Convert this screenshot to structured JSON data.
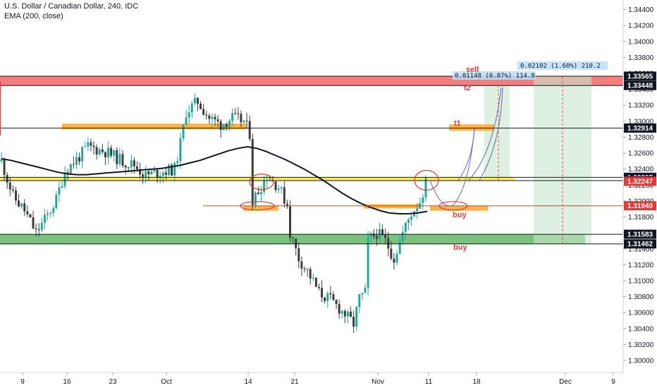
{
  "header": {
    "title": "U.S. Dollar / Canadian Dollar, 240, IDC",
    "indicator": "EMA (200, close)"
  },
  "colors": {
    "up": "#26a69a",
    "down": "#3d3d3d",
    "ema": "#131722",
    "resistance_zone": "#ef5350",
    "support_zone": "#4caf50",
    "orange_zone": "#ffa726",
    "yellow_line": "#ffeb3b",
    "red_line": "#e53935",
    "arrow": "#5c6bc0",
    "price_label_red": "#e53935",
    "price_label_black": "#131722"
  },
  "chart_data": {
    "type": "candlestick",
    "x_tick_labels": [
      "9",
      "16",
      "23",
      "Oct",
      "14",
      "21",
      "Nov",
      "11",
      "18",
      "Dec",
      "9"
    ],
    "y_tick_labels": [
      "1.34400",
      "1.34200",
      "1.34000",
      "1.33800",
      "1.33600",
      "1.33400",
      "1.33200",
      "1.33000",
      "1.32800",
      "1.32600",
      "1.32400",
      "1.32200",
      "1.32000",
      "1.31800",
      "1.31600",
      "1.31400",
      "1.31200",
      "1.31000",
      "1.30800",
      "1.30600",
      "1.30400",
      "1.30200",
      "1.30000"
    ],
    "ylim": [
      1.2985,
      1.3452
    ],
    "price_levels": [
      {
        "label": "1.33565",
        "value": 1.33565,
        "style": "black"
      },
      {
        "label": "1.33448",
        "value": 1.33448,
        "style": "black"
      },
      {
        "label": "1.32914",
        "value": 1.32914,
        "style": "black"
      },
      {
        "label": "1.32297",
        "value": 1.32297,
        "style": "black"
      },
      {
        "label": "1.32256",
        "value": 1.32256,
        "style": "black"
      },
      {
        "label": "1.32247",
        "value": 1.32247,
        "style": "red"
      },
      {
        "label": "1.31940",
        "value": 1.3194,
        "style": "red"
      },
      {
        "label": "1.31583",
        "value": 1.31583,
        "style": "black"
      },
      {
        "label": "1.31462",
        "value": 1.31462,
        "style": "black"
      }
    ],
    "annotations": {
      "sell": "sell",
      "t1": "t1",
      "t2": "t2",
      "buy1": "buy",
      "buy2": "buy",
      "measure1": "0.01148 (0.87%) 114.8",
      "measure2": "0.02102 (1.60%) 210.2"
    },
    "ema_line": [
      1.3253,
      1.3251,
      1.3248,
      1.3245,
      1.3242,
      1.3239,
      1.3236,
      1.3234,
      1.3233,
      1.3233,
      1.3234,
      1.3235,
      1.3236,
      1.3237,
      1.3238,
      1.3239,
      1.324,
      1.3241,
      1.3243,
      1.3245,
      1.3248,
      1.3251,
      1.3255,
      1.3259,
      1.3263,
      1.3266,
      1.3268,
      1.3266,
      1.3262,
      1.3257,
      1.3252,
      1.3246,
      1.324,
      1.3233,
      1.3226,
      1.3218,
      1.321,
      1.3203,
      1.3197,
      1.3192,
      1.3188,
      1.3185,
      1.3184,
      1.3184,
      1.3185,
      1.3187
    ],
    "candles_note": "approximately 150 four-hour candles from early September to mid November"
  }
}
